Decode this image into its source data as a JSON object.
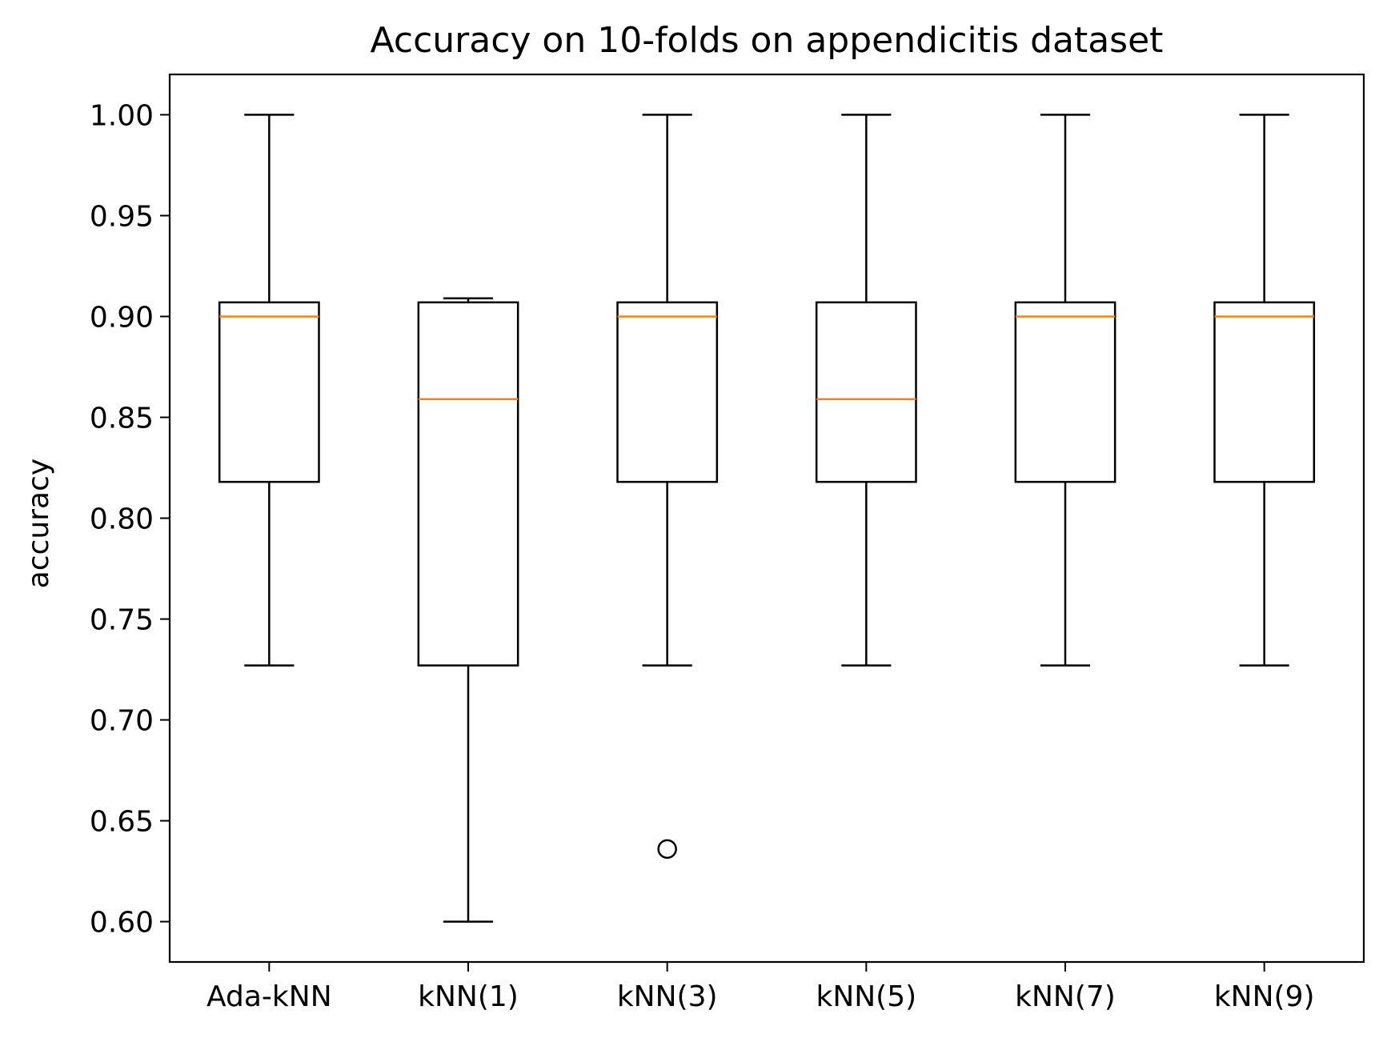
{
  "chart_data": {
    "type": "box",
    "title": "Accuracy on 10-folds on appendicitis dataset",
    "xlabel": "",
    "ylabel": "accuracy",
    "ylim": [
      0.58,
      1.02
    ],
    "y_ticks": [
      "0.60",
      "0.65",
      "0.70",
      "0.75",
      "0.80",
      "0.85",
      "0.90",
      "0.95",
      "1.00"
    ],
    "categories": [
      "Ada-kNN",
      "kNN(1)",
      "kNN(3)",
      "kNN(5)",
      "kNN(7)",
      "kNN(9)"
    ],
    "boxes": [
      {
        "label": "Ada-kNN",
        "whisker_low": 0.727,
        "q1": 0.818,
        "median": 0.9,
        "q3": 0.907,
        "whisker_high": 1.0,
        "outliers": []
      },
      {
        "label": "kNN(1)",
        "whisker_low": 0.6,
        "q1": 0.727,
        "median": 0.859,
        "q3": 0.907,
        "whisker_high": 0.909,
        "outliers": []
      },
      {
        "label": "kNN(3)",
        "whisker_low": 0.727,
        "q1": 0.818,
        "median": 0.9,
        "q3": 0.907,
        "whisker_high": 1.0,
        "outliers": [
          0.636
        ]
      },
      {
        "label": "kNN(5)",
        "whisker_low": 0.727,
        "q1": 0.818,
        "median": 0.859,
        "q3": 0.907,
        "whisker_high": 1.0,
        "outliers": []
      },
      {
        "label": "kNN(7)",
        "whisker_low": 0.727,
        "q1": 0.818,
        "median": 0.9,
        "q3": 0.907,
        "whisker_high": 1.0,
        "outliers": []
      },
      {
        "label": "kNN(9)",
        "whisker_low": 0.727,
        "q1": 0.818,
        "median": 0.9,
        "q3": 0.907,
        "whisker_high": 1.0,
        "outliers": []
      }
    ],
    "grid": false,
    "colors": {
      "box": "#000000",
      "median": "#ff7f0e",
      "background": "#ffffff"
    }
  }
}
